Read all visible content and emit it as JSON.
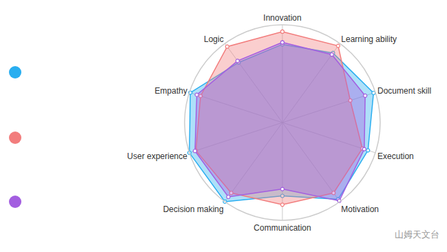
{
  "chart_data": {
    "type": "radar",
    "categories": [
      "Innovation",
      "Learning ability",
      "Document skill",
      "Execution",
      "Motivation",
      "Communication",
      "Decision making",
      "User experience",
      "Empathy",
      "Logic"
    ],
    "series": [
      {
        "color": "#29aef0",
        "values": [
          8.0,
          8.8,
          9.8,
          9.2,
          9.7,
          7.5,
          10.0,
          10.0,
          9.9,
          7.6
        ]
      },
      {
        "color": "#f27d7d",
        "values": [
          9.3,
          9.7,
          7.3,
          8.6,
          8.9,
          8.4,
          8.9,
          9.3,
          8.8,
          9.6
        ]
      },
      {
        "color": "#a35ee0",
        "values": [
          8.2,
          8.6,
          8.9,
          8.8,
          9.9,
          6.8,
          9.4,
          9.4,
          9.2,
          7.8
        ]
      }
    ],
    "ylim": [
      0,
      10
    ],
    "tick_labels": "x",
    "grid": true,
    "marker": "circle",
    "annotations": [
      "山姆天文台"
    ]
  }
}
